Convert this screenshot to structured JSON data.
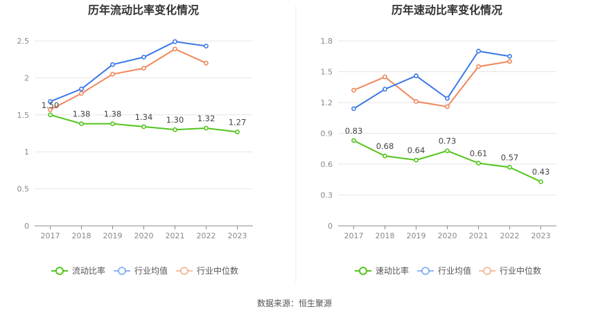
{
  "footer": {
    "source": "数据来源：恒生聚源"
  },
  "chart_data": [
    {
      "type": "line",
      "title": "历年流动比率变化情况",
      "x": [
        "2017",
        "2018",
        "2019",
        "2020",
        "2021",
        "2022",
        "2023"
      ],
      "ylim": [
        0,
        2.5
      ],
      "yticks": [
        0,
        0.5,
        1,
        1.5,
        2,
        2.5
      ],
      "ytick_labels": [
        "0",
        "0.5",
        "1",
        "1.5",
        "2",
        "2.5"
      ],
      "grid": true,
      "legend_position": "bottom",
      "series": [
        {
          "name": "流动比率",
          "color": "#52c41a",
          "values": [
            1.5,
            1.38,
            1.38,
            1.34,
            1.3,
            1.32,
            1.27
          ],
          "labels": [
            "1.50",
            "1.38",
            "1.38",
            "1.34",
            "1.30",
            "1.32",
            "1.27"
          ]
        },
        {
          "name": "行业均值",
          "color": "#3b78e7",
          "values": [
            1.68,
            1.85,
            2.18,
            2.28,
            2.49,
            2.43,
            null
          ]
        },
        {
          "name": "行业中位数",
          "color": "#f0875a",
          "values": [
            1.57,
            1.79,
            2.05,
            2.13,
            2.39,
            2.2,
            null
          ]
        }
      ]
    },
    {
      "type": "line",
      "title": "历年速动比率变化情况",
      "x": [
        "2017",
        "2018",
        "2019",
        "2020",
        "2021",
        "2022",
        "2023"
      ],
      "ylim": [
        0,
        1.8
      ],
      "yticks": [
        0,
        0.3,
        0.6,
        0.9,
        1.2,
        1.5,
        1.8
      ],
      "ytick_labels": [
        "0",
        "0.3",
        "0.6",
        "0.9",
        "1.2",
        "1.5",
        "1.8"
      ],
      "grid": true,
      "legend_position": "bottom",
      "series": [
        {
          "name": "速动比率",
          "color": "#52c41a",
          "values": [
            0.83,
            0.68,
            0.64,
            0.73,
            0.61,
            0.57,
            0.43
          ],
          "labels": [
            "0.83",
            "0.68",
            "0.64",
            "0.73",
            "0.61",
            "0.57",
            "0.43"
          ]
        },
        {
          "name": "行业均值",
          "color": "#3b78e7",
          "values": [
            1.14,
            1.33,
            1.46,
            1.24,
            1.7,
            1.65,
            null
          ]
        },
        {
          "name": "行业中位数",
          "color": "#f0875a",
          "values": [
            1.32,
            1.45,
            1.21,
            1.16,
            1.55,
            1.6,
            null
          ]
        }
      ]
    }
  ]
}
